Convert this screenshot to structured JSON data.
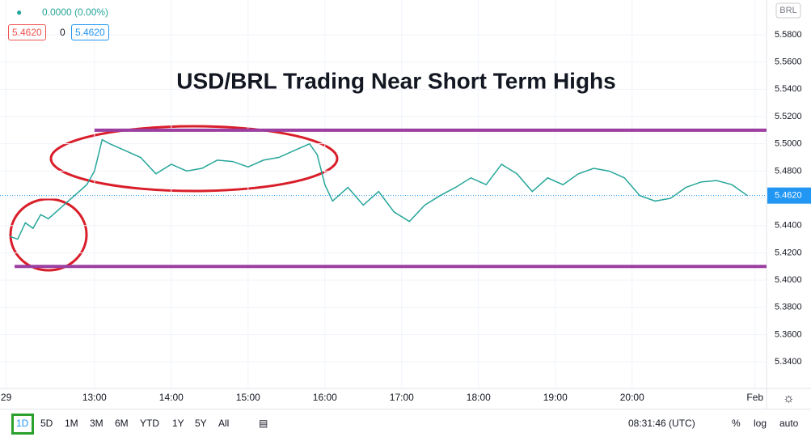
{
  "header": {
    "change": "0.0000 (0.00%)",
    "bid": "5.4620",
    "spread": "0",
    "ask": "5.4620",
    "currency": "BRL"
  },
  "chart_data": {
    "type": "line",
    "title": "USD/BRL Trading Near Short Term Highs",
    "x": [
      11.9,
      12.0,
      12.1,
      12.2,
      12.3,
      12.4,
      12.5,
      12.6,
      12.7,
      12.8,
      12.9,
      13.0,
      13.1,
      13.2,
      13.4,
      13.6,
      13.8,
      14.0,
      14.2,
      14.4,
      14.6,
      14.8,
      15.0,
      15.2,
      15.4,
      15.6,
      15.8,
      15.9,
      16.0,
      16.1,
      16.3,
      16.5,
      16.7,
      16.9,
      17.1,
      17.3,
      17.5,
      17.7,
      17.9,
      18.1,
      18.3,
      18.5,
      18.7,
      18.9,
      19.1,
      19.3,
      19.5,
      19.7,
      19.9,
      20.1,
      20.3,
      20.5,
      20.7,
      20.9,
      21.1,
      21.3,
      21.5
    ],
    "values": [
      5.432,
      5.43,
      5.442,
      5.438,
      5.448,
      5.445,
      5.45,
      5.455,
      5.46,
      5.465,
      5.47,
      5.48,
      5.503,
      5.5,
      5.495,
      5.49,
      5.478,
      5.485,
      5.48,
      5.482,
      5.488,
      5.487,
      5.483,
      5.488,
      5.49,
      5.495,
      5.5,
      5.492,
      5.47,
      5.458,
      5.468,
      5.455,
      5.465,
      5.45,
      5.443,
      5.455,
      5.462,
      5.468,
      5.475,
      5.47,
      5.485,
      5.478,
      5.465,
      5.475,
      5.47,
      5.478,
      5.482,
      5.48,
      5.475,
      5.462,
      5.458,
      5.46,
      5.468,
      5.472,
      5.473,
      5.47,
      5.462
    ],
    "color": "#26a69a",
    "xlim": [
      11.77,
      21.75
    ],
    "xticks": [
      {
        "value": 11.85,
        "label": "29"
      },
      {
        "value": 13,
        "label": "13:00"
      },
      {
        "value": 14,
        "label": "14:00"
      },
      {
        "value": 15,
        "label": "15:00"
      },
      {
        "value": 16,
        "label": "16:00"
      },
      {
        "value": 17,
        "label": "17:00"
      },
      {
        "value": 18,
        "label": "18:00"
      },
      {
        "value": 19,
        "label": "19:00"
      },
      {
        "value": 20,
        "label": "20:00"
      },
      {
        "value": 21.6,
        "label": "Feb"
      }
    ],
    "ylim": [
      5.3205,
      5.6055
    ],
    "yticks": [
      {
        "value": 5.34,
        "label": "5.3400"
      },
      {
        "value": 5.36,
        "label": "5.3600"
      },
      {
        "value": 5.38,
        "label": "5.3800"
      },
      {
        "value": 5.4,
        "label": "5.4000"
      },
      {
        "value": 5.42,
        "label": "5.4200"
      },
      {
        "value": 5.44,
        "label": "5.4400"
      },
      {
        "value": 5.46,
        "label": "5.4600"
      },
      {
        "value": 5.48,
        "label": "5.4800"
      },
      {
        "value": 5.5,
        "label": "5.5000"
      },
      {
        "value": 5.52,
        "label": "5.5200"
      },
      {
        "value": 5.54,
        "label": "5.5400"
      },
      {
        "value": 5.56,
        "label": "5.5600"
      },
      {
        "value": 5.58,
        "label": "5.5800"
      }
    ],
    "grid": true,
    "levels": [
      {
        "value": 5.51,
        "start": 13.0,
        "color": "#9c3fa1"
      },
      {
        "value": 5.41,
        "start": 11.96,
        "color": "#9c3fa1"
      }
    ],
    "last_value": 5.462,
    "last_label": "5.4620",
    "last_color": "#2196f3"
  },
  "toolbar": {
    "ranges": [
      "1D",
      "5D",
      "1M",
      "3M",
      "6M",
      "YTD",
      "1Y",
      "5Y",
      "All"
    ],
    "clock": "08:31:46 (UTC)",
    "percent": "%",
    "log": "log",
    "auto": "auto"
  }
}
